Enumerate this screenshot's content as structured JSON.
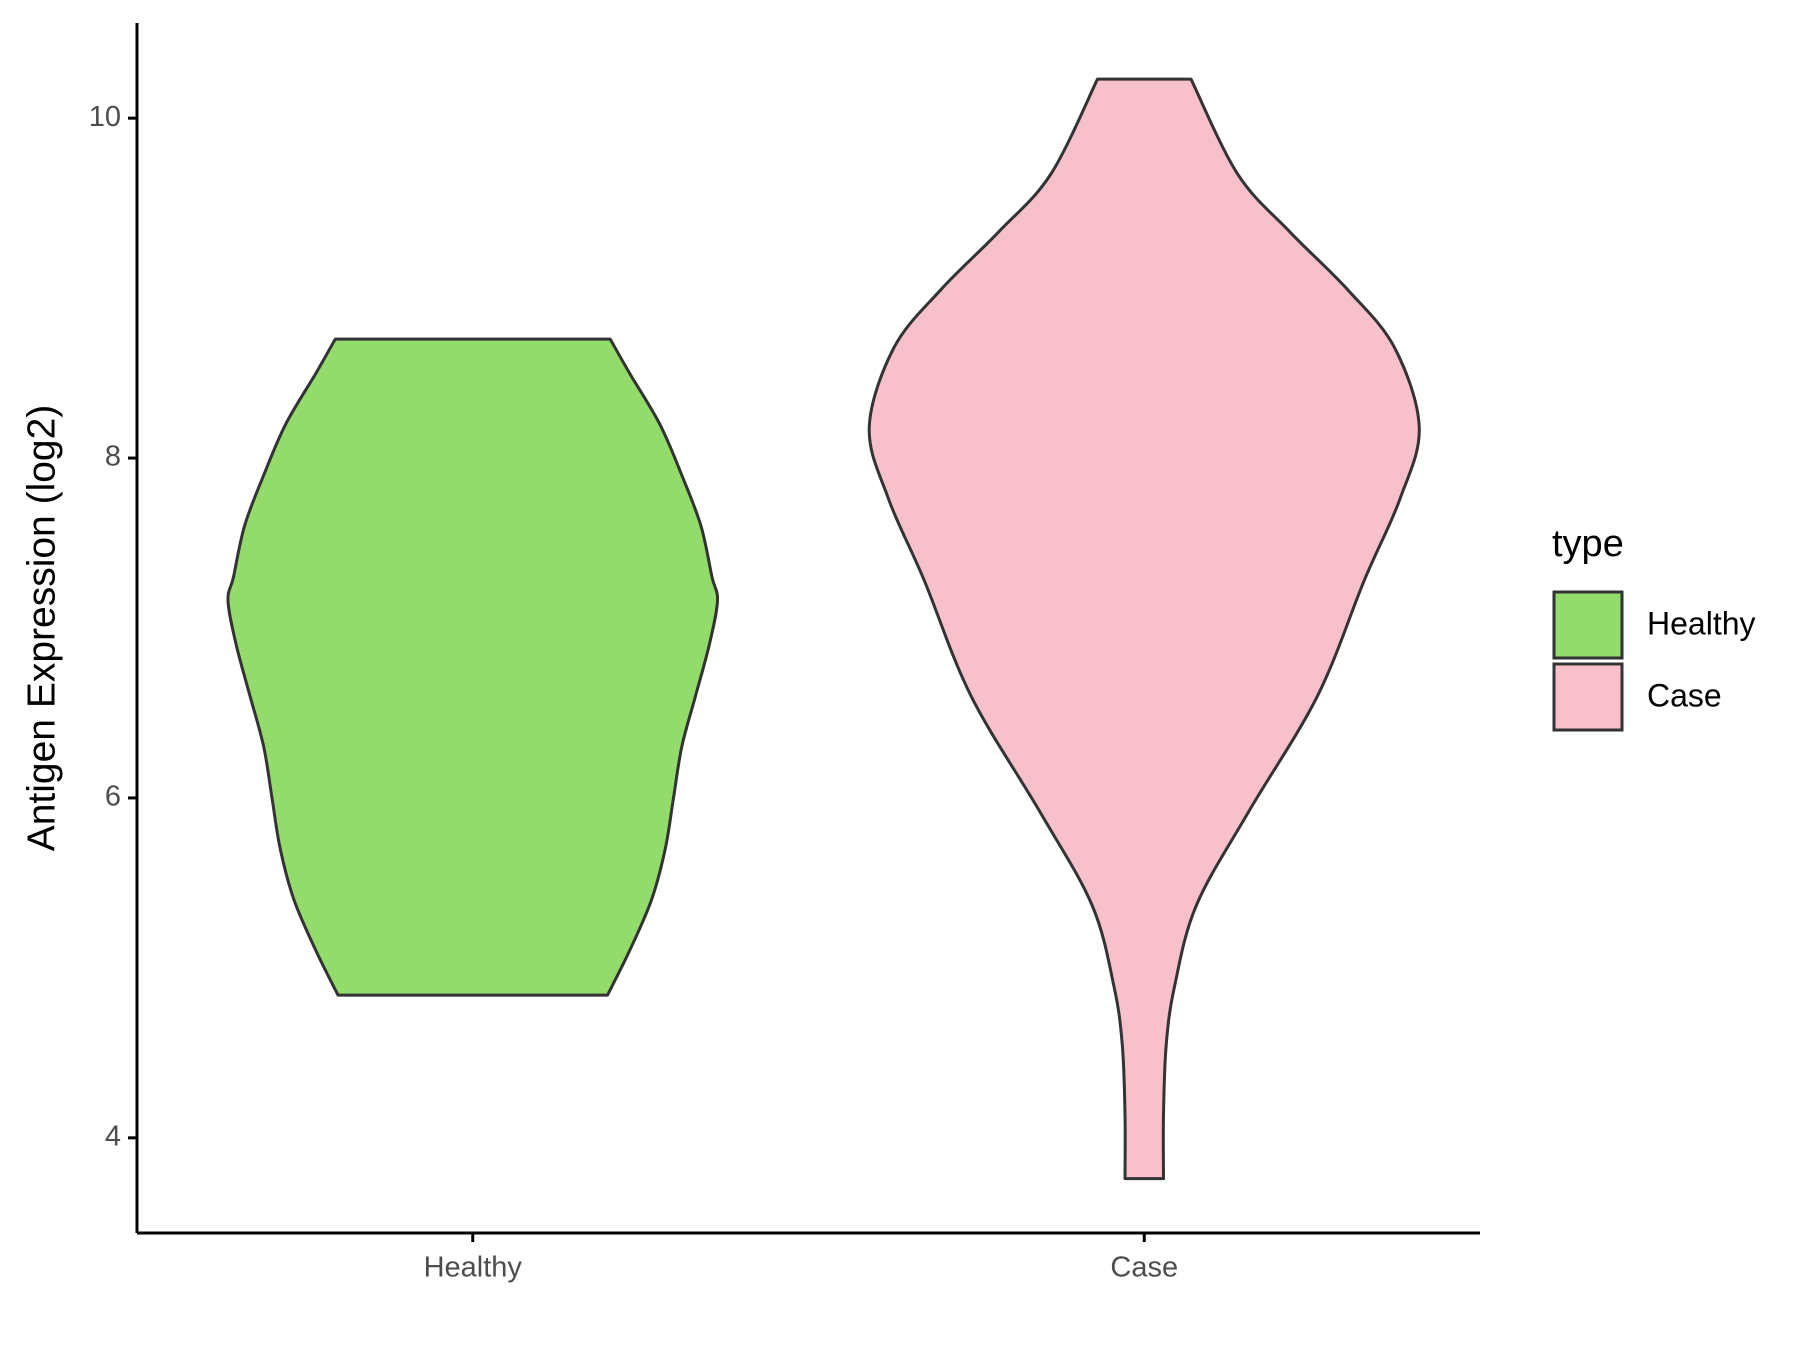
{
  "chart_data": {
    "type": "violin",
    "y_label": "Antigen Expression (log2)",
    "categories": [
      "Healthy",
      "Case"
    ],
    "legend_title": "type",
    "legend_position": "right",
    "ylim": [
      3.44,
      10.56
    ],
    "yticks": [
      4,
      6,
      8,
      10
    ],
    "grid": false,
    "series": [
      {
        "name": "Healthy",
        "color": "#93db6b",
        "y": [
          8.7,
          8.5,
          8.2,
          7.9,
          7.6,
          7.3,
          7.16,
          6.9,
          6.6,
          6.3,
          6.0,
          5.7,
          5.4,
          5.1,
          4.84
        ],
        "density": [
          0.5,
          0.57,
          0.68,
          0.76,
          0.83,
          0.87,
          0.89,
          0.86,
          0.81,
          0.76,
          0.73,
          0.7,
          0.65,
          0.57,
          0.49
        ]
      },
      {
        "name": "Case",
        "color": "#f8c0cb",
        "y": [
          10.23,
          9.67,
          9.33,
          8.99,
          8.65,
          8.18,
          7.76,
          7.28,
          6.6,
          5.92,
          5.37,
          4.89,
          4.55,
          4.14,
          3.76
        ],
        "density": [
          0.17,
          0.34,
          0.53,
          0.74,
          0.91,
          1.0,
          0.93,
          0.8,
          0.63,
          0.38,
          0.19,
          0.11,
          0.08,
          0.07,
          0.07
        ]
      }
    ]
  }
}
